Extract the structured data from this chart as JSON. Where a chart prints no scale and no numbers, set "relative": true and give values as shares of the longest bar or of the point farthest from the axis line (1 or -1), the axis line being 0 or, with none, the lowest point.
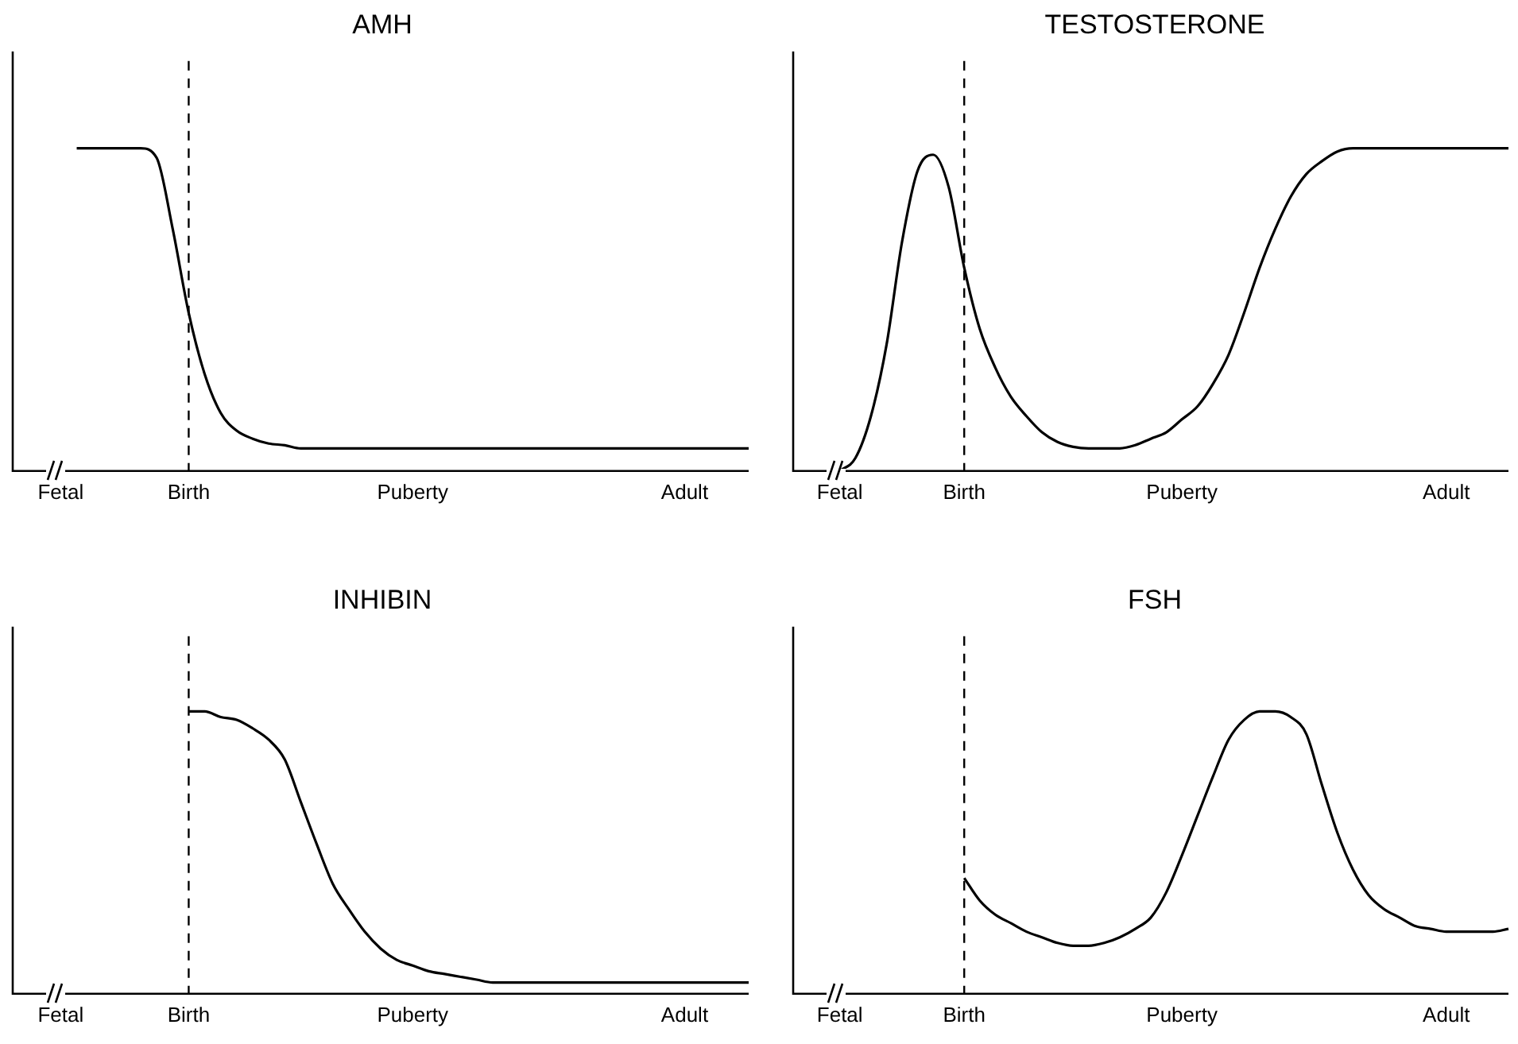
{
  "chart_data": [
    {
      "type": "line",
      "title": "AMH",
      "relative": true,
      "categories": [
        null,
        null,
        null,
        "Fetal",
        null,
        null,
        null,
        null,
        null,
        null,
        null,
        "Birth",
        null,
        null,
        null,
        null,
        null,
        null,
        null,
        null,
        null,
        null,
        null,
        null,
        null,
        "Puberty",
        null,
        null,
        null,
        null,
        null,
        null,
        null,
        null,
        null,
        null,
        null,
        null,
        null,
        null,
        null,
        null,
        "Adult",
        null,
        null,
        null,
        null
      ],
      "series": [
        {
          "color": "#000000",
          "values": [
            null,
            null,
            null,
            null,
            1,
            1,
            1,
            1,
            1,
            0.97,
            0.75,
            0.49,
            0.3,
            0.18,
            0.125,
            0.1,
            0.085,
            0.08,
            0.07,
            0.07,
            0.07,
            0.07,
            0.07,
            0.07,
            0.07,
            0.07,
            0.07,
            0.07,
            0.07,
            0.07,
            0.07,
            0.07,
            0.07,
            0.07,
            0.07,
            0.07,
            0.07,
            0.07,
            0.07,
            0.07,
            0.07,
            0.07,
            0.07,
            0.07,
            0.07,
            0.07,
            0.07
          ]
        }
      ],
      "ref_lines": [
        {
          "axis": "x",
          "value": "Birth",
          "line_style": "dashed",
          "color": "#000000"
        }
      ],
      "grid": false,
      "legend": false
    },
    {
      "type": "line",
      "title": "TESTOSTERONE",
      "relative": true,
      "categories": [
        null,
        null,
        null,
        "Fetal",
        null,
        null,
        null,
        null,
        null,
        null,
        null,
        "Birth",
        null,
        null,
        null,
        null,
        null,
        null,
        null,
        null,
        null,
        null,
        null,
        null,
        null,
        "Puberty",
        null,
        null,
        null,
        null,
        null,
        null,
        null,
        null,
        null,
        null,
        null,
        null,
        null,
        null,
        null,
        null,
        "Adult",
        null,
        null,
        null,
        null
      ],
      "series": [
        {
          "color": "#000000",
          "values": [
            null,
            null,
            null,
            0,
            0.04,
            0.17,
            0.39,
            0.71,
            0.93,
            0.98,
            0.88,
            0.63,
            0.44,
            0.32,
            0.23,
            0.17,
            0.12,
            0.09,
            0.075,
            0.07,
            0.07,
            0.07,
            0.08,
            0.1,
            0.12,
            0.16,
            0.2,
            0.27,
            0.36,
            0.49,
            0.63,
            0.75,
            0.85,
            0.92,
            0.96,
            0.99,
            1,
            1,
            1,
            1,
            1,
            1,
            1,
            1,
            1,
            1,
            1
          ]
        }
      ],
      "ref_lines": [
        {
          "axis": "x",
          "value": "Birth",
          "line_style": "dashed",
          "color": "#000000"
        }
      ],
      "grid": false,
      "legend": false
    },
    {
      "type": "line",
      "title": "INHIBIN",
      "relative": true,
      "categories": [
        null,
        null,
        null,
        "Fetal",
        null,
        null,
        null,
        null,
        null,
        null,
        null,
        "Birth",
        null,
        null,
        null,
        null,
        null,
        null,
        null,
        null,
        null,
        null,
        null,
        null,
        null,
        "Puberty",
        null,
        null,
        null,
        null,
        null,
        null,
        null,
        null,
        null,
        null,
        null,
        null,
        null,
        null,
        null,
        null,
        "Adult",
        null,
        null,
        null,
        null
      ],
      "series": [
        {
          "color": "#000000",
          "values": [
            null,
            null,
            null,
            null,
            null,
            null,
            null,
            null,
            null,
            null,
            null,
            1,
            1,
            0.98,
            0.97,
            0.94,
            0.9,
            0.83,
            0.68,
            0.53,
            0.39,
            0.3,
            0.22,
            0.16,
            0.12,
            0.1,
            0.08,
            0.07,
            0.06,
            0.05,
            0.04,
            0.04,
            0.04,
            0.04,
            0.04,
            0.04,
            0.04,
            0.04,
            0.04,
            0.04,
            0.04,
            0.04,
            0.04,
            0.04,
            0.04,
            0.04,
            0.04
          ]
        }
      ],
      "ref_lines": [
        {
          "axis": "x",
          "value": "Birth",
          "line_style": "dashed",
          "color": "#000000"
        }
      ],
      "grid": false,
      "legend": false
    },
    {
      "type": "line",
      "title": "FSH",
      "relative": true,
      "categories": [
        null,
        null,
        null,
        "Fetal",
        null,
        null,
        null,
        null,
        null,
        null,
        null,
        "Birth",
        null,
        null,
        null,
        null,
        null,
        null,
        null,
        null,
        null,
        null,
        null,
        null,
        null,
        "Puberty",
        null,
        null,
        null,
        null,
        null,
        null,
        null,
        null,
        null,
        null,
        null,
        null,
        null,
        null,
        null,
        null,
        "Adult",
        null,
        null,
        null,
        null
      ],
      "series": [
        {
          "color": "#000000",
          "values": [
            null,
            null,
            null,
            null,
            null,
            null,
            null,
            null,
            null,
            null,
            null,
            0.41,
            0.33,
            0.28,
            0.25,
            0.22,
            0.2,
            0.18,
            0.17,
            0.17,
            0.18,
            0.2,
            0.23,
            0.27,
            0.36,
            0.49,
            0.63,
            0.77,
            0.9,
            0.97,
            1,
            1,
            0.98,
            0.92,
            0.74,
            0.57,
            0.44,
            0.35,
            0.3,
            0.27,
            0.24,
            0.23,
            0.22,
            0.22,
            0.22,
            0.22,
            0.23
          ]
        }
      ],
      "ref_lines": [
        {
          "axis": "x",
          "value": "Birth",
          "line_style": "dashed",
          "color": "#000000"
        }
      ],
      "grid": false,
      "legend": false
    }
  ]
}
